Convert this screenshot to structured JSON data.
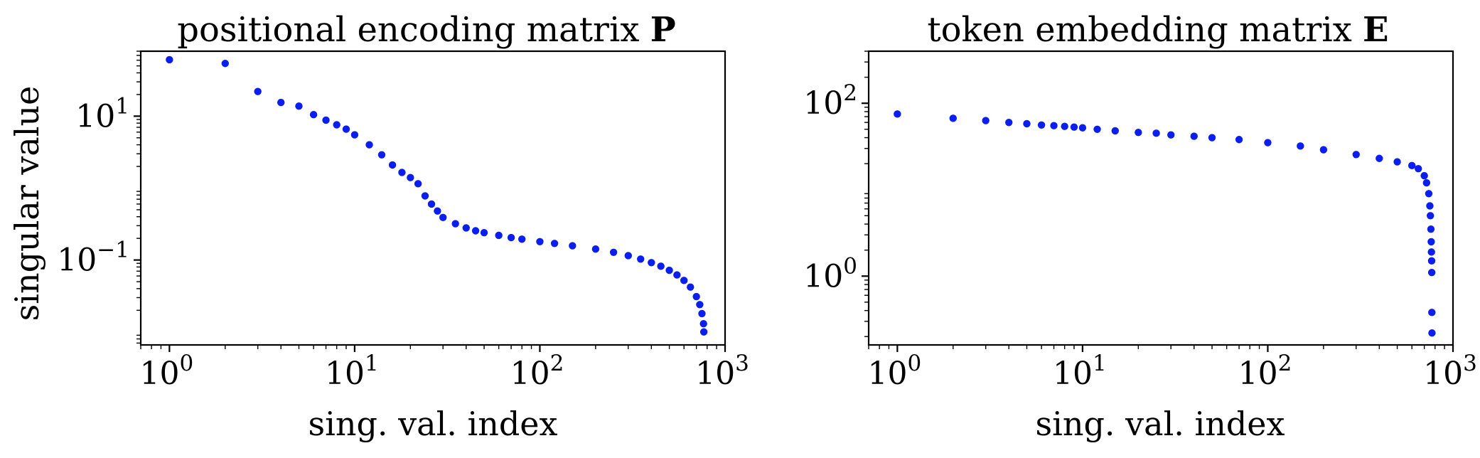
{
  "chart_data": [
    {
      "type": "scatter",
      "title": "positional encoding matrix",
      "title_bold": "P",
      "xlabel": "sing. val. index",
      "ylabel": "singular value",
      "x_scale": "log",
      "y_scale": "log",
      "xlim": [
        0.7,
        1000
      ],
      "ylim": [
        0.0066,
        80
      ],
      "grid": false,
      "marker_color": "#0a1ef0",
      "x_ticks": [
        {
          "base": "10",
          "exp": "0",
          "value": 1
        },
        {
          "base": "10",
          "exp": "1",
          "value": 10
        },
        {
          "base": "10",
          "exp": "2",
          "value": 100
        },
        {
          "base": "10",
          "exp": "3",
          "value": 1000
        }
      ],
      "y_ticks": [
        {
          "base": "10",
          "exp": "1",
          "value": 10
        },
        {
          "base": "10",
          "exp": "−1",
          "value": 0.1
        }
      ],
      "points": [
        [
          1,
          61
        ],
        [
          2,
          54
        ],
        [
          3,
          22
        ],
        [
          4,
          15.5
        ],
        [
          5,
          13.8
        ],
        [
          6,
          10.5
        ],
        [
          7,
          8.8
        ],
        [
          8,
          7.6
        ],
        [
          9,
          6.6
        ],
        [
          10,
          5.5
        ],
        [
          12,
          4.0
        ],
        [
          14,
          2.9
        ],
        [
          16,
          2.1
        ],
        [
          18,
          1.65
        ],
        [
          20,
          1.4
        ],
        [
          22,
          1.15
        ],
        [
          24,
          0.78
        ],
        [
          26,
          0.6
        ],
        [
          28,
          0.48
        ],
        [
          30,
          0.39
        ],
        [
          35,
          0.32
        ],
        [
          40,
          0.28
        ],
        [
          45,
          0.255
        ],
        [
          50,
          0.24
        ],
        [
          60,
          0.22
        ],
        [
          70,
          0.205
        ],
        [
          80,
          0.195
        ],
        [
          100,
          0.18
        ],
        [
          120,
          0.17
        ],
        [
          150,
          0.158
        ],
        [
          200,
          0.142
        ],
        [
          250,
          0.128
        ],
        [
          300,
          0.115
        ],
        [
          350,
          0.103
        ],
        [
          400,
          0.092
        ],
        [
          450,
          0.082
        ],
        [
          500,
          0.072
        ],
        [
          550,
          0.062
        ],
        [
          600,
          0.052
        ],
        [
          650,
          0.042
        ],
        [
          700,
          0.031
        ],
        [
          730,
          0.024
        ],
        [
          750,
          0.018
        ],
        [
          765,
          0.013
        ],
        [
          768,
          0.01
        ]
      ]
    },
    {
      "type": "scatter",
      "title": "token embedding matrix",
      "title_bold": "E",
      "xlabel": "sing. val. index",
      "ylabel": "",
      "x_scale": "log",
      "y_scale": "log",
      "xlim": [
        0.7,
        1000
      ],
      "ylim": [
        0.16,
        400
      ],
      "grid": false,
      "marker_color": "#0a1ef0",
      "x_ticks": [
        {
          "base": "10",
          "exp": "0",
          "value": 1
        },
        {
          "base": "10",
          "exp": "1",
          "value": 10
        },
        {
          "base": "10",
          "exp": "2",
          "value": 100
        },
        {
          "base": "10",
          "exp": "3",
          "value": 1000
        }
      ],
      "y_ticks": [
        {
          "base": "10",
          "exp": "2",
          "value": 100
        },
        {
          "base": "10",
          "exp": "0",
          "value": 1
        }
      ],
      "points": [
        [
          1,
          75
        ],
        [
          2,
          67
        ],
        [
          3,
          63
        ],
        [
          4,
          60
        ],
        [
          5,
          58
        ],
        [
          6,
          56
        ],
        [
          7,
          55
        ],
        [
          8,
          54
        ],
        [
          9,
          53
        ],
        [
          10,
          52
        ],
        [
          12,
          50
        ],
        [
          15,
          48
        ],
        [
          20,
          46
        ],
        [
          25,
          45
        ],
        [
          30,
          43
        ],
        [
          40,
          41.5
        ],
        [
          50,
          40
        ],
        [
          70,
          38
        ],
        [
          100,
          35
        ],
        [
          150,
          32
        ],
        [
          200,
          29
        ],
        [
          300,
          25.5
        ],
        [
          400,
          23
        ],
        [
          500,
          21
        ],
        [
          600,
          19
        ],
        [
          650,
          17.5
        ],
        [
          700,
          14.5
        ],
        [
          720,
          12
        ],
        [
          740,
          9
        ],
        [
          750,
          6.5
        ],
        [
          755,
          5
        ],
        [
          760,
          3.5
        ],
        [
          763,
          2.5
        ],
        [
          765,
          1.9
        ],
        [
          767,
          1.5
        ],
        [
          768,
          1.1
        ],
        [
          769,
          0.38
        ],
        [
          770,
          0.22
        ]
      ]
    }
  ]
}
